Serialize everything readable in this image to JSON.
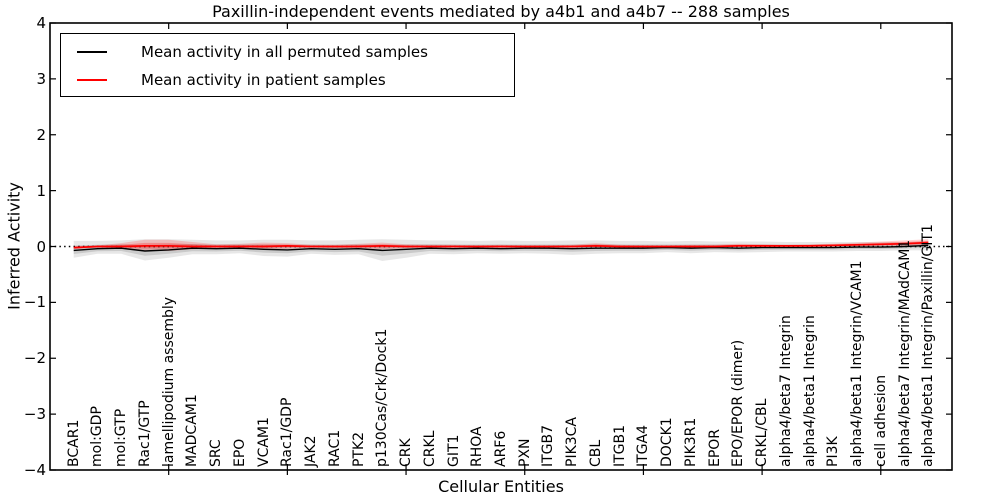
{
  "chart_data": {
    "type": "line",
    "title": "Paxillin-independent events mediated by a4b1 and a4b7 -- 288 samples",
    "xlabel": "Cellular Entities",
    "ylabel": "Inferred Activity",
    "ylim": [
      -4,
      4
    ],
    "yticks": [
      4,
      3,
      2,
      1,
      0,
      -1,
      -2,
      -3,
      -4
    ],
    "grid": false,
    "zero_line": {
      "y": 0,
      "style": "dotted",
      "color": "#000000"
    },
    "x_spine_tick_positions": [
      5,
      10,
      15,
      20,
      25,
      30,
      35
    ],
    "categories": [
      "BCAR1",
      "mol:GDP",
      "mol:GTP",
      "Rac1/GTP",
      "lamellipodium assembly",
      "MADCAM1",
      "SRC",
      "EPO",
      "VCAM1",
      "Rac1/GDP",
      "JAK2",
      "RAC1",
      "PTK2",
      "p130Cas/Crk/Dock1",
      "CRK",
      "CRKL",
      "GIT1",
      "RHOA",
      "ARF6",
      "PXN",
      "ITGB7",
      "PIK3CA",
      "CBL",
      "ITGB1",
      "ITGA4",
      "DOCK1",
      "PIK3R1",
      "EPOR",
      "EPO/EPOR (dimer)",
      "CRKL/CBL",
      "alpha4/beta7 Integrin",
      "alpha4/beta1 Integrin",
      "PI3K",
      "alpha4/beta1 Integrin/VCAM1",
      "cell adhesion",
      "alpha4/beta7 Integrin/MAdCAM1",
      "alpha4/beta1 Integrin/Paxillin/GIT1"
    ],
    "legend": {
      "position": "upper left",
      "entries": [
        {
          "label": "Mean activity in all permuted samples",
          "color": "#000000"
        },
        {
          "label": "Mean activity in patient samples",
          "color": "#ff0000"
        }
      ]
    },
    "series": [
      {
        "name": "Mean activity in all permuted samples",
        "color": "#000000",
        "values": [
          -0.07,
          -0.04,
          -0.03,
          -0.08,
          -0.06,
          -0.03,
          -0.04,
          -0.03,
          -0.05,
          -0.06,
          -0.04,
          -0.05,
          -0.04,
          -0.07,
          -0.05,
          -0.03,
          -0.04,
          -0.03,
          -0.04,
          -0.03,
          -0.03,
          -0.04,
          -0.03,
          -0.03,
          -0.03,
          -0.02,
          -0.03,
          -0.02,
          -0.03,
          -0.02,
          -0.02,
          -0.02,
          -0.02,
          -0.01,
          -0.01,
          0.0,
          0.02
        ]
      },
      {
        "name": "Mean activity in patient samples",
        "color": "#ff0000",
        "values": [
          -0.02,
          0.0,
          0.0,
          0.01,
          0.01,
          0.0,
          0.0,
          0.0,
          0.0,
          0.01,
          0.0,
          0.0,
          0.0,
          0.01,
          0.0,
          0.0,
          0.0,
          0.0,
          0.0,
          0.0,
          0.0,
          0.0,
          0.01,
          0.0,
          0.0,
          0.0,
          0.0,
          0.0,
          0.01,
          0.01,
          0.01,
          0.01,
          0.02,
          0.03,
          0.04,
          0.05,
          0.07
        ]
      }
    ],
    "bands": [
      {
        "name": "permuted samples spread",
        "color": "#787878",
        "opacity": 0.18,
        "upper": [
          0.1,
          0.1,
          0.11,
          0.13,
          0.13,
          0.12,
          0.11,
          0.11,
          0.12,
          0.12,
          0.11,
          0.11,
          0.12,
          0.13,
          0.12,
          0.11,
          0.11,
          0.1,
          0.11,
          0.1,
          0.1,
          0.11,
          0.11,
          0.1,
          0.1,
          0.09,
          0.1,
          0.09,
          0.09,
          0.09,
          0.08,
          0.08,
          0.08,
          0.08,
          0.08,
          0.08,
          0.09
        ],
        "lower": [
          -0.2,
          -0.13,
          -0.13,
          -0.25,
          -0.2,
          -0.14,
          -0.14,
          -0.12,
          -0.17,
          -0.18,
          -0.13,
          -0.15,
          -0.14,
          -0.26,
          -0.2,
          -0.13,
          -0.14,
          -0.12,
          -0.13,
          -0.12,
          -0.13,
          -0.15,
          -0.13,
          -0.12,
          -0.12,
          -0.1,
          -0.12,
          -0.1,
          -0.11,
          -0.1,
          -0.09,
          -0.09,
          -0.09,
          -0.08,
          -0.08,
          -0.07,
          -0.07
        ]
      },
      {
        "name": "patient samples spread",
        "color": "#ff0000",
        "opacity": 0.18,
        "upper": [
          0.01,
          0.02,
          0.06,
          0.12,
          0.12,
          0.08,
          0.04,
          0.05,
          0.07,
          0.06,
          0.03,
          0.03,
          0.05,
          0.07,
          0.04,
          0.03,
          0.03,
          0.02,
          0.03,
          0.02,
          0.02,
          0.03,
          0.06,
          0.03,
          0.02,
          0.02,
          0.03,
          0.03,
          0.05,
          0.04,
          0.03,
          0.04,
          0.05,
          0.07,
          0.09,
          0.11,
          0.13
        ],
        "lower": [
          -0.05,
          -0.02,
          -0.04,
          -0.08,
          -0.08,
          -0.05,
          -0.03,
          -0.03,
          -0.05,
          -0.04,
          -0.02,
          -0.03,
          -0.03,
          -0.05,
          -0.03,
          -0.02,
          -0.02,
          -0.02,
          -0.02,
          -0.02,
          -0.01,
          -0.02,
          -0.02,
          -0.02,
          -0.01,
          -0.01,
          -0.02,
          -0.01,
          -0.01,
          -0.01,
          -0.01,
          0.0,
          0.0,
          0.0,
          0.01,
          0.01,
          0.02
        ]
      }
    ]
  }
}
